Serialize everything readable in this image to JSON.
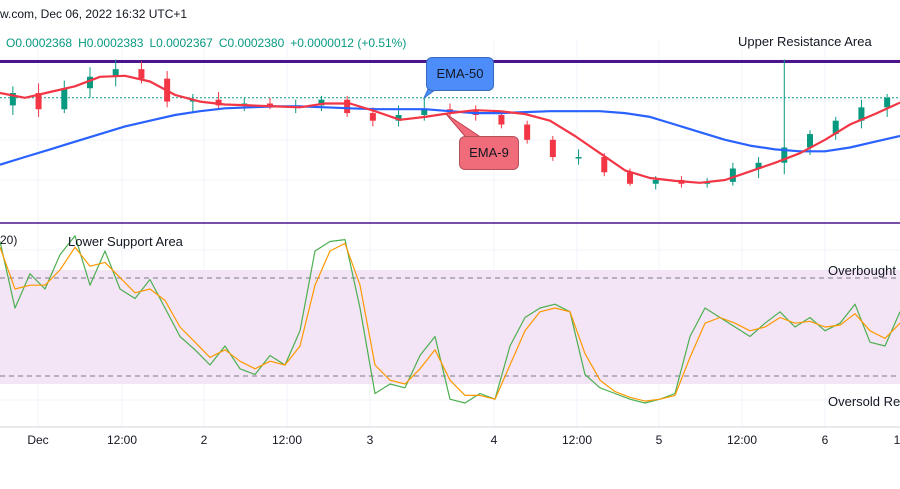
{
  "header": {
    "source_date": "w.com, Dec 06, 2022 16:32 UTC+1"
  },
  "ohlc": {
    "open": "O0.0002368",
    "high": "H0.0002383",
    "low": "L0.0002367",
    "close": "C0.0002380",
    "change": "+0.0000012 (+0.51%)"
  },
  "annotations": {
    "upper_resistance": "Upper Resistance Area",
    "lower_support": "Lower Support Area",
    "ema50": "EMA-50",
    "ema9": "EMA-9",
    "overbought": "Overbought",
    "oversold": "Oversold Re",
    "stoch_title": "20)"
  },
  "colors": {
    "ema50": "#2962ff",
    "ema9": "#f23645",
    "bull": "#089981",
    "bear": "#f23645",
    "resistance": "#4a148c",
    "stoch_k": "#4caf50",
    "stoch_d": "#ff9800",
    "band_fill": "#f3e5f5"
  },
  "chart_data": {
    "type": "line",
    "x_ticks": [
      "Dec",
      "12:00",
      "2",
      "12:00",
      "3",
      "4",
      "12:00",
      "5",
      "12:00",
      "6",
      "1"
    ],
    "series": [
      {
        "name": "EMA-50",
        "values": [
          0.000231,
          0.0002318,
          0.0002326,
          0.0002334,
          0.0002342,
          0.000235,
          0.0002356,
          0.0002362,
          0.0002366,
          0.0002369,
          0.000237,
          0.0002371,
          0.0002371,
          0.000237,
          0.0002369,
          0.0002368,
          0.0002368,
          0.0002368,
          0.0002366,
          0.0002364,
          0.0002364,
          0.0002365,
          0.0002366,
          0.0002366,
          0.0002366,
          0.0002364,
          0.000236,
          0.0002352,
          0.0002344,
          0.0002336,
          0.000233,
          0.0002326,
          0.0002324,
          0.0002324,
          0.0002328,
          0.0002334,
          0.000234
        ]
      },
      {
        "name": "EMA-9",
        "values": [
          0.0002385,
          0.000238,
          0.0002386,
          0.0002392,
          0.0002402,
          0.0002403,
          0.0002397,
          0.0002383,
          0.0002376,
          0.0002373,
          0.0002372,
          0.0002371,
          0.000237,
          0.0002374,
          0.0002374,
          0.0002366,
          0.0002357,
          0.000236,
          0.0002364,
          0.0002367,
          0.0002366,
          0.0002363,
          0.0002356,
          0.000234,
          0.0002322,
          0.0002304,
          0.0002296,
          0.0002293,
          0.0002291,
          0.0002294,
          0.0002303,
          0.0002312,
          0.0002322,
          0.0002336,
          0.0002352,
          0.0002363,
          0.0002375
        ]
      }
    ],
    "candles": [
      [
        0.0002372,
        0.0002392,
        0.0002362,
        0.0002385
      ],
      [
        0.0002385,
        0.0002395,
        0.000236,
        0.0002368
      ],
      [
        0.0002368,
        0.0002398,
        0.0002364,
        0.000239
      ],
      [
        0.000239,
        0.0002412,
        0.000238,
        0.0002402
      ],
      [
        0.0002402,
        0.000242,
        0.0002392,
        0.000241
      ],
      [
        0.000241,
        0.0002418,
        0.0002395,
        0.00024
      ],
      [
        0.00024,
        0.0002408,
        0.000237,
        0.0002376
      ],
      [
        0.0002376,
        0.0002384,
        0.0002365,
        0.0002378
      ],
      [
        0.0002378,
        0.0002386,
        0.0002368,
        0.0002372
      ],
      [
        0.0002372,
        0.000238,
        0.0002366,
        0.0002374
      ],
      [
        0.0002374,
        0.000238,
        0.0002368,
        0.000237
      ],
      [
        0.000237,
        0.0002378,
        0.0002364,
        0.0002372
      ],
      [
        0.0002372,
        0.0002382,
        0.0002366,
        0.0002378
      ],
      [
        0.0002378,
        0.0002382,
        0.000236,
        0.0002364
      ],
      [
        0.0002364,
        0.000237,
        0.000235,
        0.0002356
      ],
      [
        0.0002356,
        0.0002372,
        0.000235,
        0.0002362
      ],
      [
        0.0002362,
        0.000238,
        0.0002356,
        0.0002368
      ],
      [
        0.0002368,
        0.0002374,
        0.000236,
        0.0002366
      ],
      [
        0.0002366,
        0.0002372,
        0.0002356,
        0.0002362
      ],
      [
        0.0002362,
        0.0002366,
        0.0002348,
        0.0002352
      ],
      [
        0.0002352,
        0.0002356,
        0.0002332,
        0.0002336
      ],
      [
        0.0002336,
        0.000234,
        0.0002314,
        0.0002318
      ],
      [
        0.0002318,
        0.0002326,
        0.000231,
        0.0002318
      ],
      [
        0.0002318,
        0.0002322,
        0.0002298,
        0.0002302
      ],
      [
        0.0002302,
        0.0002306,
        0.0002288,
        0.000229
      ],
      [
        0.000229,
        0.0002298,
        0.0002284,
        0.0002294
      ],
      [
        0.0002294,
        0.0002298,
        0.0002286,
        0.000229
      ],
      [
        0.000229,
        0.0002296,
        0.0002286,
        0.0002292
      ],
      [
        0.0002292,
        0.0002312,
        0.0002288,
        0.0002306
      ],
      [
        0.0002306,
        0.0002318,
        0.0002296,
        0.0002312
      ],
      [
        0.0002312,
        0.000242,
        0.00023,
        0.0002328
      ],
      [
        0.0002328,
        0.0002346,
        0.000232,
        0.0002342
      ],
      [
        0.0002342,
        0.000236,
        0.0002336,
        0.0002356
      ],
      [
        0.0002356,
        0.0002378,
        0.0002348,
        0.000237
      ],
      [
        0.000237,
        0.0002384,
        0.000236,
        0.000238
      ]
    ],
    "resistance_level": 0.0002418,
    "ylim": [
      0.000225,
      0.000243
    ],
    "stochastic": {
      "overbought": 80,
      "oversold": 20,
      "ylim": [
        0,
        100
      ],
      "k": [
        95,
        60,
        78,
        70,
        88,
        98,
        72,
        90,
        70,
        65,
        75,
        60,
        45,
        38,
        30,
        40,
        28,
        25,
        35,
        30,
        48,
        90,
        95,
        96,
        60,
        15,
        20,
        18,
        35,
        45,
        12,
        10,
        15,
        12,
        40,
        55,
        60,
        62,
        58,
        25,
        18,
        15,
        12,
        10,
        12,
        15,
        45,
        60,
        55,
        50,
        45,
        52,
        58,
        50,
        55,
        48,
        52,
        62,
        42,
        40,
        58
      ],
      "d": [
        92,
        70,
        72,
        72,
        80,
        92,
        82,
        84,
        76,
        68,
        70,
        64,
        50,
        42,
        34,
        38,
        32,
        28,
        32,
        30,
        40,
        72,
        90,
        94,
        72,
        30,
        22,
        20,
        28,
        38,
        22,
        14,
        14,
        12,
        30,
        48,
        58,
        60,
        58,
        36,
        22,
        16,
        13,
        11,
        12,
        14,
        34,
        52,
        55,
        52,
        48,
        50,
        55,
        52,
        53,
        50,
        51,
        57,
        48,
        44,
        52
      ]
    }
  }
}
